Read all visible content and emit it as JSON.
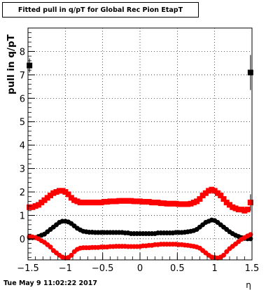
{
  "chart_data": {
    "type": "scatter",
    "title": "Fitted pull in q/pT for Global Rec Pion EtapT",
    "xlabel": "η",
    "ylabel": "pull in q/pT",
    "xlim": [
      -1.5,
      1.5
    ],
    "ylim": [
      -0.9,
      9.0
    ],
    "x_ticks": [
      "−1.5",
      "−1",
      "−0.5",
      "0",
      "0.5",
      "1",
      "1.5"
    ],
    "x_tick_values": [
      -1.5,
      -1.0,
      -0.5,
      0.0,
      0.5,
      1.0,
      1.5
    ],
    "y_ticks": [
      "0",
      "1",
      "2",
      "3",
      "4",
      "5",
      "6",
      "7",
      "8"
    ],
    "y_tick_values": [
      0,
      1,
      2,
      3,
      4,
      5,
      6,
      7,
      8
    ],
    "grid": true,
    "colors": {
      "black": "#000000",
      "red": "#ff0000"
    },
    "series": [
      {
        "marker": "square",
        "color": "#ff0000",
        "x": [
          -1.48,
          -1.44,
          -1.4,
          -1.36,
          -1.32,
          -1.28,
          -1.24,
          -1.2,
          -1.16,
          -1.12,
          -1.08,
          -1.04,
          -1.0,
          -0.96,
          -0.92,
          -0.88,
          -0.84,
          -0.8,
          -0.76,
          -0.72,
          -0.68,
          -0.64,
          -0.6,
          -0.56,
          -0.52,
          -0.48,
          -0.44,
          -0.4,
          -0.36,
          -0.32,
          -0.28,
          -0.24,
          -0.2,
          -0.16,
          -0.12,
          -0.08,
          -0.04,
          0.0,
          0.04,
          0.08,
          0.12,
          0.16,
          0.2,
          0.24,
          0.28,
          0.32,
          0.36,
          0.4,
          0.44,
          0.48,
          0.52,
          0.56,
          0.6,
          0.64,
          0.68,
          0.72,
          0.76,
          0.8,
          0.84,
          0.88,
          0.92,
          0.96,
          1.0,
          1.04,
          1.08,
          1.12,
          1.16,
          1.2,
          1.24,
          1.28,
          1.32,
          1.36,
          1.4,
          1.44,
          1.48
        ],
        "y": [
          1.35,
          1.35,
          1.4,
          1.45,
          1.55,
          1.65,
          1.75,
          1.85,
          1.95,
          2.0,
          2.05,
          2.05,
          2.0,
          1.9,
          1.75,
          1.65,
          1.6,
          1.55,
          1.55,
          1.55,
          1.55,
          1.55,
          1.55,
          1.55,
          1.55,
          1.58,
          1.58,
          1.6,
          1.6,
          1.6,
          1.62,
          1.62,
          1.62,
          1.62,
          1.62,
          1.6,
          1.6,
          1.6,
          1.58,
          1.58,
          1.58,
          1.55,
          1.55,
          1.55,
          1.52,
          1.52,
          1.5,
          1.5,
          1.5,
          1.5,
          1.48,
          1.48,
          1.48,
          1.48,
          1.5,
          1.55,
          1.6,
          1.7,
          1.85,
          1.95,
          2.05,
          2.1,
          2.05,
          1.95,
          1.85,
          1.7,
          1.55,
          1.45,
          1.35,
          1.3,
          1.25,
          1.25,
          1.2,
          1.25,
          1.55
        ]
      },
      {
        "marker": "circle",
        "color": "#000000",
        "x": [
          -1.48,
          -1.44,
          -1.4,
          -1.36,
          -1.32,
          -1.28,
          -1.24,
          -1.2,
          -1.16,
          -1.12,
          -1.08,
          -1.04,
          -1.0,
          -0.96,
          -0.92,
          -0.88,
          -0.84,
          -0.8,
          -0.76,
          -0.72,
          -0.68,
          -0.64,
          -0.6,
          -0.56,
          -0.52,
          -0.48,
          -0.44,
          -0.4,
          -0.36,
          -0.32,
          -0.28,
          -0.24,
          -0.2,
          -0.16,
          -0.12,
          -0.08,
          -0.04,
          0.0,
          0.04,
          0.08,
          0.12,
          0.16,
          0.2,
          0.24,
          0.28,
          0.32,
          0.36,
          0.4,
          0.44,
          0.48,
          0.52,
          0.56,
          0.6,
          0.64,
          0.68,
          0.72,
          0.76,
          0.8,
          0.84,
          0.88,
          0.92,
          0.96,
          1.0,
          1.04,
          1.08,
          1.12,
          1.16,
          1.2,
          1.24,
          1.28,
          1.32,
          1.36,
          1.4,
          1.44,
          1.48
        ],
        "y": [
          0.05,
          0.05,
          0.05,
          0.1,
          0.15,
          0.2,
          0.3,
          0.4,
          0.5,
          0.6,
          0.7,
          0.75,
          0.75,
          0.72,
          0.65,
          0.55,
          0.45,
          0.38,
          0.32,
          0.3,
          0.28,
          0.28,
          0.27,
          0.27,
          0.27,
          0.27,
          0.27,
          0.27,
          0.27,
          0.27,
          0.27,
          0.27,
          0.25,
          0.25,
          0.22,
          0.22,
          0.22,
          0.22,
          0.22,
          0.22,
          0.22,
          0.22,
          0.22,
          0.25,
          0.25,
          0.25,
          0.25,
          0.25,
          0.25,
          0.27,
          0.27,
          0.27,
          0.28,
          0.3,
          0.32,
          0.35,
          0.4,
          0.5,
          0.6,
          0.7,
          0.75,
          0.8,
          0.78,
          0.7,
          0.6,
          0.5,
          0.4,
          0.3,
          0.22,
          0.15,
          0.1,
          0.05,
          0.02,
          0.0,
          0.0
        ]
      },
      {
        "marker": "circle",
        "color": "#ff0000",
        "x": [
          -1.48,
          -1.44,
          -1.4,
          -1.36,
          -1.32,
          -1.28,
          -1.24,
          -1.2,
          -1.16,
          -1.12,
          -1.08,
          -1.04,
          -1.0,
          -0.96,
          -0.92,
          -0.88,
          -0.84,
          -0.8,
          -0.76,
          -0.72,
          -0.68,
          -0.64,
          -0.6,
          -0.56,
          -0.52,
          -0.48,
          -0.44,
          -0.4,
          -0.36,
          -0.32,
          -0.28,
          -0.24,
          -0.2,
          -0.16,
          -0.12,
          -0.08,
          -0.04,
          0.0,
          0.04,
          0.08,
          0.12,
          0.16,
          0.2,
          0.24,
          0.28,
          0.32,
          0.36,
          0.4,
          0.44,
          0.48,
          0.52,
          0.56,
          0.6,
          0.64,
          0.68,
          0.72,
          0.76,
          0.8,
          0.84,
          0.88,
          0.92,
          0.96,
          1.0,
          1.04,
          1.08,
          1.12,
          1.16,
          1.2,
          1.24,
          1.28,
          1.32,
          1.36,
          1.4,
          1.44,
          1.48
        ],
        "y": [
          0.1,
          0.08,
          0.05,
          0.0,
          -0.08,
          -0.15,
          -0.25,
          -0.35,
          -0.5,
          -0.6,
          -0.7,
          -0.78,
          -0.82,
          -0.8,
          -0.7,
          -0.55,
          -0.45,
          -0.4,
          -0.38,
          -0.38,
          -0.38,
          -0.37,
          -0.37,
          -0.37,
          -0.35,
          -0.35,
          -0.35,
          -0.33,
          -0.33,
          -0.32,
          -0.32,
          -0.32,
          -0.32,
          -0.33,
          -0.33,
          -0.33,
          -0.33,
          -0.33,
          -0.3,
          -0.3,
          -0.28,
          -0.28,
          -0.25,
          -0.25,
          -0.23,
          -0.23,
          -0.23,
          -0.23,
          -0.23,
          -0.23,
          -0.25,
          -0.25,
          -0.27,
          -0.28,
          -0.3,
          -0.32,
          -0.35,
          -0.4,
          -0.5,
          -0.6,
          -0.7,
          -0.78,
          -0.8,
          -0.82,
          -0.78,
          -0.7,
          -0.55,
          -0.42,
          -0.32,
          -0.22,
          -0.12,
          -0.02,
          0.05,
          0.12,
          0.18
        ]
      }
    ],
    "edge_points": [
      {
        "x": -1.48,
        "y": 7.4,
        "err": 0.3,
        "color": "#000000",
        "marker": "square"
      },
      {
        "x": 1.48,
        "y": 7.1,
        "err": 0.75,
        "color": "#000000",
        "marker": "square"
      },
      {
        "x": 1.48,
        "y": 1.55,
        "err": 0.35,
        "color": "#ff0000",
        "marker": "square"
      }
    ]
  },
  "footer": {
    "timestamp": "Tue May  9 11:02:22 2017"
  }
}
